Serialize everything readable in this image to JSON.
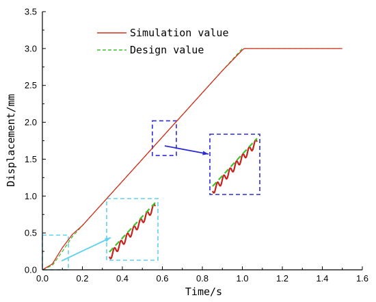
{
  "chart_data": {
    "type": "line",
    "xlabel": "Time/s",
    "ylabel": "Displacement/mm",
    "xlim": [
      0,
      1.6
    ],
    "ylim": [
      0,
      3.5
    ],
    "x_ticks": [
      "0.0",
      "0.2",
      "0.4",
      "0.6",
      "0.8",
      "1.0",
      "1.2",
      "1.4",
      "1.6"
    ],
    "y_ticks": [
      "0.0",
      "0.5",
      "1.0",
      "1.5",
      "2.0",
      "2.5",
      "3.0",
      "3.5"
    ],
    "grid": false,
    "legend_position": "top-center",
    "series": [
      {
        "name": "Simulation value",
        "color": "#d62a1e",
        "style": "solid",
        "x": [
          0,
          0.05,
          0.1,
          0.15,
          0.2,
          0.3,
          0.4,
          0.5,
          0.6,
          0.7,
          0.8,
          0.9,
          1.0,
          1.01,
          1.2,
          1.4,
          1.5
        ],
        "y": [
          0,
          0.08,
          0.3,
          0.48,
          0.6,
          0.9,
          1.2,
          1.5,
          1.8,
          2.1,
          2.4,
          2.7,
          2.98,
          3.0,
          3.0,
          3.0,
          3.0
        ]
      },
      {
        "name": "Design value",
        "color": "#3fbf2a",
        "style": "dashed",
        "x": [
          0,
          0.05,
          0.1,
          0.15,
          0.2,
          0.3,
          0.4,
          0.5,
          0.6,
          0.7,
          0.8,
          0.9,
          1.0,
          1.2,
          1.4,
          1.5
        ],
        "y": [
          0,
          0.06,
          0.25,
          0.45,
          0.6,
          0.9,
          1.2,
          1.5,
          1.8,
          2.1,
          2.4,
          2.7,
          3.0,
          3.0,
          3.0,
          3.0
        ]
      }
    ],
    "zoom_insets": [
      {
        "region_color": "#2b2bd9",
        "region_x": [
          0.55,
          0.67
        ],
        "region_y": [
          1.55,
          2.02
        ]
      },
      {
        "region_color": "#5fd0f0",
        "region_x": [
          0.0,
          0.13
        ],
        "region_y": [
          0.0,
          0.47
        ]
      }
    ]
  }
}
